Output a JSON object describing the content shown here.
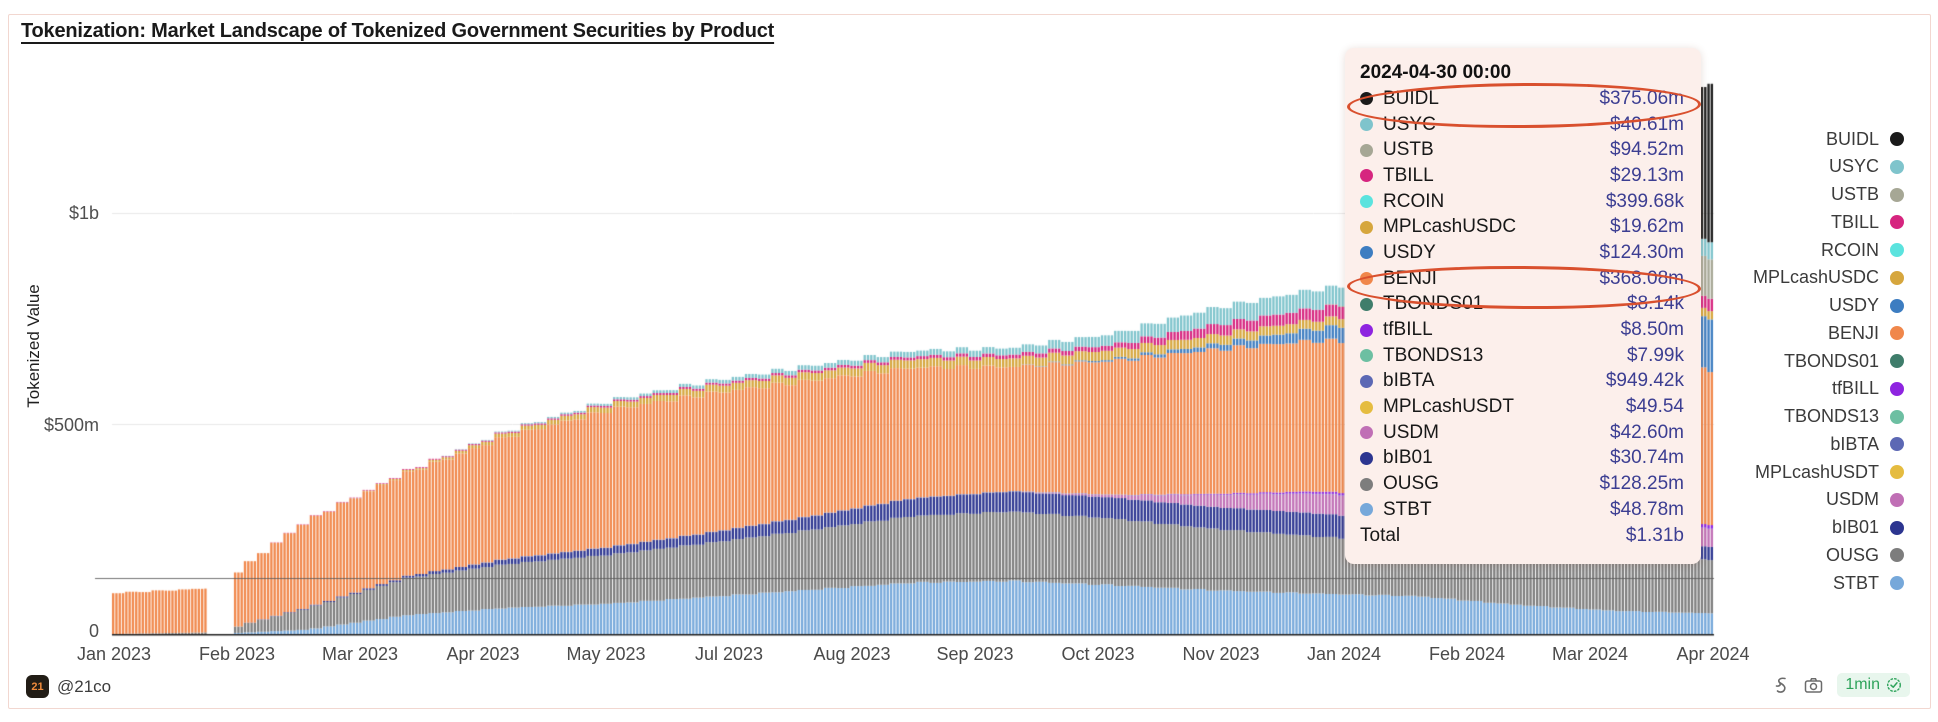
{
  "title": "Tokenization: Market Landscape of Tokenized Government Securities by Product",
  "y_axis": {
    "title": "Tokenized Value",
    "tick_1b": "$1b",
    "tick_500m": "$500m",
    "tick_0": "0"
  },
  "x_axis": {
    "labels": [
      "Jan 2023",
      "Feb 2023",
      "Mar 2023",
      "Apr 2023",
      "May 2023",
      "Jul 2023",
      "Aug 2023",
      "Sep 2023",
      "Oct 2023",
      "Nov 2023",
      "Jan 2024",
      "Feb 2024",
      "Mar 2024",
      "Apr 2024"
    ]
  },
  "products": [
    {
      "label": "BUIDL",
      "color": "#1a1a1a"
    },
    {
      "label": "USYC",
      "color": "#7fc4cc"
    },
    {
      "label": "USTB",
      "color": "#a6a795"
    },
    {
      "label": "TBILL",
      "color": "#d6257f"
    },
    {
      "label": "RCOIN",
      "color": "#5be3de"
    },
    {
      "label": "MPLcashUSDC",
      "color": "#d6a63d"
    },
    {
      "label": "USDY",
      "color": "#3d7dc1"
    },
    {
      "label": "BENJI",
      "color": "#f0874b"
    },
    {
      "label": "TBONDS01",
      "color": "#3f7d6b"
    },
    {
      "label": "tfBILL",
      "color": "#8e24e0"
    },
    {
      "label": "TBONDS13",
      "color": "#6dbfa2"
    },
    {
      "label": "bIBTA",
      "color": "#5c68b4"
    },
    {
      "label": "MPLcashUSDT",
      "color": "#e5bc40"
    },
    {
      "label": "USDM",
      "color": "#c06fb5"
    },
    {
      "label": "bIB01",
      "color": "#2c3590"
    },
    {
      "label": "OUSG",
      "color": "#7d7d7d"
    },
    {
      "label": "STBT",
      "color": "#76a8da"
    }
  ],
  "tooltip": {
    "date": "2024-04-30 00:00",
    "rows": [
      {
        "label": "BUIDL",
        "value": "$375.06m",
        "circled": true
      },
      {
        "label": "USYC",
        "value": "$40.61m",
        "circled": false
      },
      {
        "label": "USTB",
        "value": "$94.52m",
        "circled": false
      },
      {
        "label": "TBILL",
        "value": "$29.13m",
        "circled": false
      },
      {
        "label": "RCOIN",
        "value": "$399.68k",
        "circled": false
      },
      {
        "label": "MPLcashUSDC",
        "value": "$19.62m",
        "circled": false
      },
      {
        "label": "USDY",
        "value": "$124.30m",
        "circled": false
      },
      {
        "label": "BENJI",
        "value": "$368.08m",
        "circled": true
      },
      {
        "label": "TBONDS01",
        "value": "$8.14k",
        "circled": false
      },
      {
        "label": "tfBILL",
        "value": "$8.50m",
        "circled": false
      },
      {
        "label": "TBONDS13",
        "value": "$7.99k",
        "circled": false
      },
      {
        "label": "bIBTA",
        "value": "$949.42k",
        "circled": false
      },
      {
        "label": "MPLcashUSDT",
        "value": "$49.54",
        "circled": false
      },
      {
        "label": "USDM",
        "value": "$42.60m",
        "circled": false
      },
      {
        "label": "bIB01",
        "value": "$30.74m",
        "circled": false
      },
      {
        "label": "OUSG",
        "value": "$128.25m",
        "circled": false
      },
      {
        "label": "STBT",
        "value": "$48.78m",
        "circled": false
      }
    ],
    "total_label": "Total",
    "total_value": "$1.31b"
  },
  "footer": {
    "handle": "@21co",
    "avatar_text": "21",
    "freshness": "1min"
  },
  "chart_data": {
    "type": "bar",
    "stacked": true,
    "unit": "$m",
    "x_start": "2023-01-01",
    "x_end": "2024-04-30",
    "ylim": [
      0,
      1400
    ],
    "gridline_values": [
      500,
      1000
    ],
    "crosshair_value": 133,
    "gap_days": [
      29,
      36
    ],
    "keyframe_dates": [
      "2023-01-01",
      "2023-02-01",
      "2023-03-01",
      "2023-04-01",
      "2023-05-01",
      "2023-06-01",
      "2023-07-01",
      "2023-08-01",
      "2023-09-01",
      "2023-10-01",
      "2023-11-01",
      "2023-12-01",
      "2024-01-01",
      "2024-02-01",
      "2024-03-01",
      "2024-04-01",
      "2024-04-30"
    ],
    "month_lengths": [
      31,
      28,
      31,
      30,
      31,
      30,
      31,
      31,
      30,
      31,
      30,
      31,
      31,
      29,
      31,
      30
    ],
    "series_bottom_to_top": [
      {
        "name": "STBT",
        "values": [
          0,
          0,
          10,
          45,
          62,
          72,
          88,
          105,
          122,
          126,
          116,
          104,
          96,
          90,
          70,
          55,
          48.78
        ]
      },
      {
        "name": "OUSG",
        "values": [
          0,
          4,
          50,
          88,
          104,
          116,
          128,
          142,
          158,
          165,
          158,
          146,
          136,
          126,
          114,
          118,
          128.25
        ]
      },
      {
        "name": "bIB01",
        "values": [
          0,
          0,
          2,
          5,
          12,
          18,
          24,
          32,
          42,
          48,
          50,
          52,
          55,
          52,
          45,
          35,
          30.74
        ]
      },
      {
        "name": "USDM",
        "values": [
          0,
          0,
          0,
          0,
          0,
          0,
          0,
          0,
          0,
          0,
          6,
          28,
          46,
          52,
          50,
          45,
          42.6
        ]
      },
      {
        "name": "MPLcashUSDT",
        "values": [
          0,
          0,
          0,
          0,
          0,
          0,
          0,
          0,
          0,
          0,
          0,
          0,
          0,
          0,
          0,
          0,
          5e-05
        ]
      },
      {
        "name": "bIBTA",
        "values": [
          0,
          0,
          0,
          0,
          0.95,
          0.95,
          0.95,
          0.95,
          0.95,
          0.95,
          0.95,
          0.95,
          0.95,
          0.95,
          0.95,
          0.95,
          0.95
        ]
      },
      {
        "name": "TBONDS13",
        "values": [
          0,
          0,
          0,
          0,
          0,
          0,
          0,
          0,
          0,
          0,
          0,
          0,
          0,
          0,
          0,
          0,
          0.008
        ]
      },
      {
        "name": "tfBILL",
        "values": [
          0,
          0,
          0,
          0,
          0,
          0,
          0,
          0,
          0,
          0,
          0,
          2,
          5,
          7,
          8,
          8.6,
          8.5
        ]
      },
      {
        "name": "TBONDS01",
        "values": [
          0,
          0,
          0,
          0,
          0,
          0,
          0,
          0,
          0,
          0,
          0,
          0,
          0,
          0,
          0,
          0,
          0.008
        ]
      },
      {
        "name": "BENJI",
        "values": [
          97,
          105,
          205,
          245,
          290,
          325,
          330,
          322,
          310,
          295,
          318,
          342,
          358,
          364,
          370,
          368,
          368.08
        ]
      },
      {
        "name": "USDY",
        "values": [
          0,
          0,
          0,
          0,
          0,
          0,
          0,
          0,
          0,
          0,
          4,
          12,
          28,
          55,
          90,
          115,
          124.3
        ]
      },
      {
        "name": "MPLcashUSDC",
        "values": [
          0,
          0,
          0,
          3,
          9,
          13,
          16,
          18,
          20,
          20,
          22,
          22,
          21,
          20,
          20,
          19.6,
          19.62
        ]
      },
      {
        "name": "RCOIN",
        "values": [
          0,
          0,
          0.4,
          0.4,
          0.4,
          0.4,
          0.4,
          0.4,
          0.4,
          0.4,
          0.4,
          0.4,
          0.4,
          0.4,
          0.4,
          0.4,
          0.39968
        ]
      },
      {
        "name": "TBILL",
        "values": [
          0,
          0,
          1,
          2,
          3,
          4,
          5,
          6,
          7,
          9,
          12,
          24,
          28,
          30,
          30,
          29,
          29.13
        ]
      },
      {
        "name": "USTB",
        "values": [
          0,
          0,
          0,
          0,
          0,
          0,
          0,
          0,
          0,
          0,
          0,
          0,
          0,
          8,
          55,
          88,
          94.52
        ]
      },
      {
        "name": "USYC",
        "values": [
          0,
          0,
          0,
          0,
          2,
          5,
          8,
          11,
          13,
          16,
          26,
          40,
          44,
          42,
          40,
          41,
          40.61
        ]
      },
      {
        "name": "BUIDL",
        "values": [
          0,
          0,
          0,
          0,
          0,
          0,
          0,
          0,
          0,
          0,
          0,
          0,
          0,
          0,
          20,
          288,
          375.06
        ]
      }
    ]
  },
  "layout_hints": {
    "legend_position": "right",
    "grid": "horizontal-light"
  }
}
